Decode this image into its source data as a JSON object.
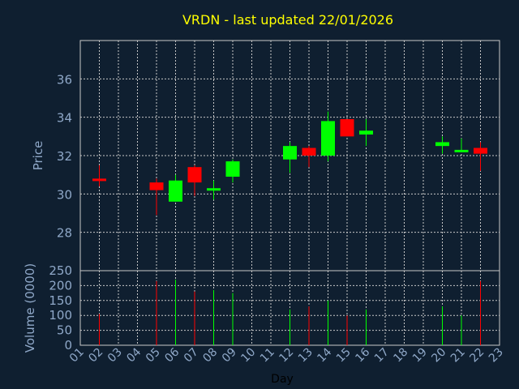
{
  "chart_data": {
    "type": "candlestick",
    "title": "VRDN - last updated 22/01/2026",
    "xlabel": "Day",
    "price_ylabel": "Price",
    "volume_ylabel": "Volume (0000)",
    "x_ticks": [
      "01",
      "02",
      "03",
      "04",
      "05",
      "06",
      "07",
      "08",
      "09",
      "10",
      "11",
      "12",
      "13",
      "14",
      "15",
      "16",
      "17",
      "18",
      "19",
      "20",
      "21",
      "22",
      "23"
    ],
    "price_ylim": [
      26,
      38
    ],
    "price_ticks": [
      28,
      30,
      32,
      34,
      36
    ],
    "volume_ylim": [
      0,
      250
    ],
    "volume_ticks": [
      0,
      50,
      100,
      150,
      200,
      250
    ],
    "grid": true,
    "colors": {
      "up": "#00ff00",
      "down": "#ff0000",
      "title": "#ffff00",
      "axis_text": "#8fa8c8",
      "background": "#0f1f30",
      "grid": "#c8c8c8"
    },
    "candles": [
      {
        "day": "02",
        "open": 30.8,
        "high": 31.5,
        "low": 30.4,
        "close": 30.7,
        "volume": 105
      },
      {
        "day": "05",
        "open": 30.6,
        "high": 30.8,
        "low": 28.9,
        "close": 30.2,
        "volume": 215
      },
      {
        "day": "06",
        "open": 29.6,
        "high": 31.0,
        "low": 29.6,
        "close": 30.7,
        "volume": 220
      },
      {
        "day": "07",
        "open": 31.4,
        "high": 31.5,
        "low": 29.9,
        "close": 30.6,
        "volume": 180
      },
      {
        "day": "08",
        "open": 30.2,
        "high": 30.7,
        "low": 29.7,
        "close": 30.3,
        "volume": 185
      },
      {
        "day": "09",
        "open": 30.9,
        "high": 31.8,
        "low": 30.6,
        "close": 31.7,
        "volume": 175
      },
      {
        "day": "12",
        "open": 31.8,
        "high": 32.7,
        "low": 31.1,
        "close": 32.5,
        "volume": 120
      },
      {
        "day": "13",
        "open": 32.4,
        "high": 32.5,
        "low": 31.4,
        "close": 32.0,
        "volume": 130
      },
      {
        "day": "14",
        "open": 32.0,
        "high": 34.3,
        "low": 31.7,
        "close": 33.8,
        "volume": 150
      },
      {
        "day": "15",
        "open": 33.9,
        "high": 33.9,
        "low": 33.0,
        "close": 33.0,
        "volume": 100
      },
      {
        "day": "16",
        "open": 33.1,
        "high": 33.9,
        "low": 32.5,
        "close": 33.3,
        "volume": 120
      },
      {
        "day": "20",
        "open": 32.5,
        "high": 33.0,
        "low": 32.1,
        "close": 32.7,
        "volume": 130
      },
      {
        "day": "21",
        "open": 32.3,
        "high": 32.9,
        "low": 32.2,
        "close": 32.3,
        "volume": 100
      },
      {
        "day": "22",
        "open": 32.4,
        "high": 32.7,
        "low": 31.2,
        "close": 32.1,
        "volume": 215
      }
    ]
  }
}
